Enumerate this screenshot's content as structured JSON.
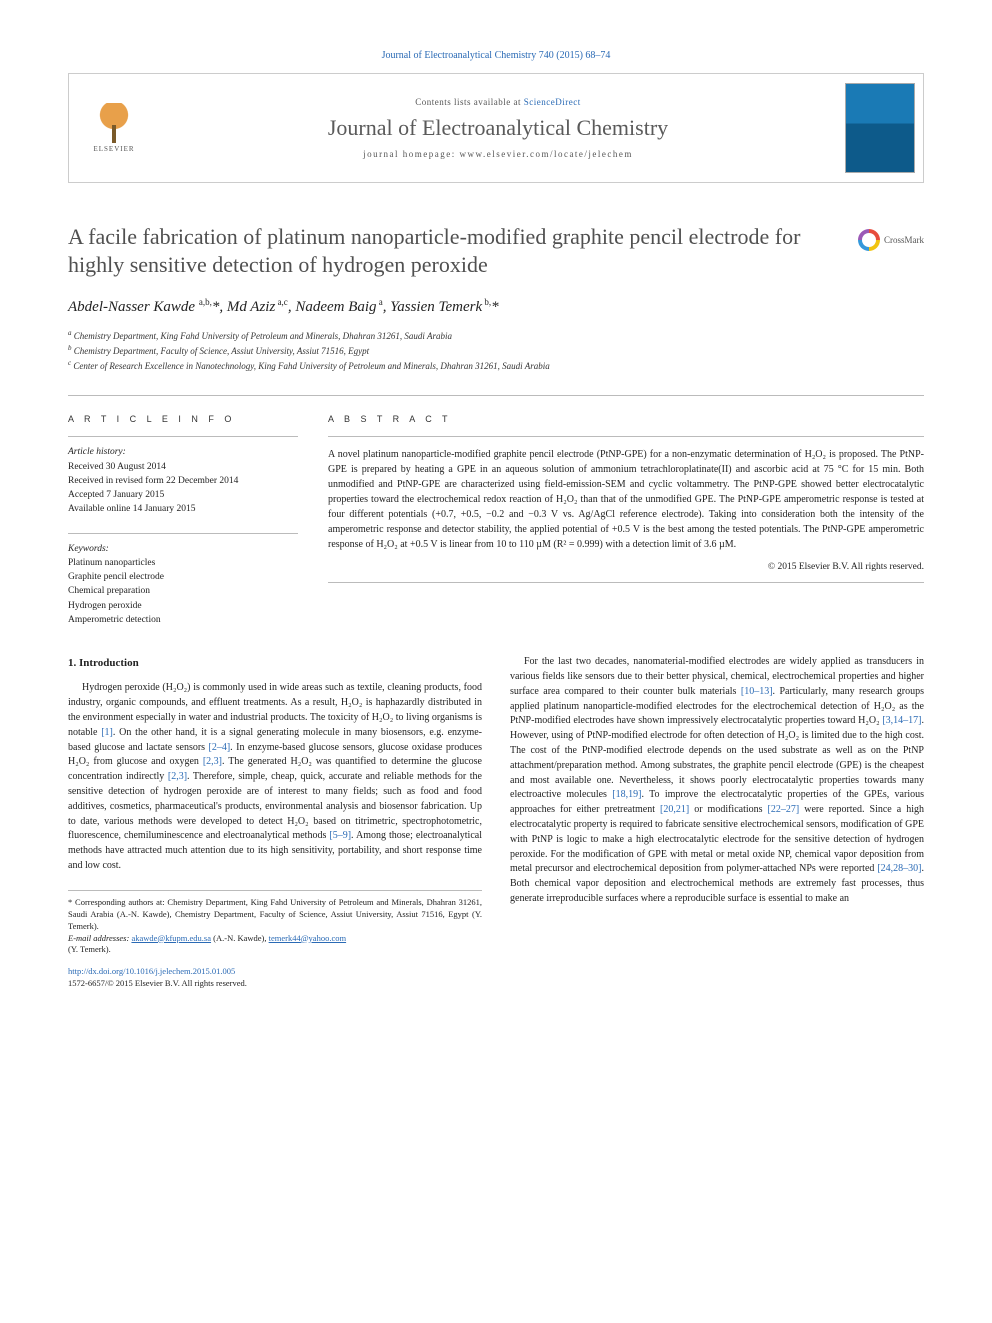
{
  "header": {
    "citation": "Journal of Electroanalytical Chemistry 740 (2015) 68–74",
    "contents_prefix": "Contents lists available at ",
    "contents_link": "ScienceDirect",
    "journal_title": "Journal of Electroanalytical Chemistry",
    "homepage_prefix": "journal homepage: ",
    "homepage_url": "www.elsevier.com/locate/jelechem",
    "publisher_name": "ELSEVIER",
    "crossmark_label": "CrossMark"
  },
  "article": {
    "title": "A facile fabrication of platinum nanoparticle-modified graphite pencil electrode for highly sensitive detection of hydrogen peroxide",
    "authors_html": "Abdel-Nasser Kawde <sup>a,b,</sup><span class='ast'>*</span>, Md Aziz<sup> a,c</sup>, Nadeem Baig<sup> a</sup>, Yassien Temerk<sup> b,</sup><span class='ast'>*</span>",
    "affiliations": {
      "a": "Chemistry Department, King Fahd University of Petroleum and Minerals, Dhahran 31261, Saudi Arabia",
      "b": "Chemistry Department, Faculty of Science, Assiut University, Assiut 71516, Egypt",
      "c": "Center of Research Excellence in Nanotechnology, King Fahd University of Petroleum and Minerals, Dhahran 31261, Saudi Arabia"
    }
  },
  "info": {
    "label": "A R T I C L E   I N F O",
    "history_label": "Article history:",
    "history": [
      "Received 30 August 2014",
      "Received in revised form 22 December 2014",
      "Accepted 7 January 2015",
      "Available online 14 January 2015"
    ],
    "keywords_label": "Keywords:",
    "keywords": [
      "Platinum nanoparticles",
      "Graphite pencil electrode",
      "Chemical preparation",
      "Hydrogen peroxide",
      "Amperometric detection"
    ]
  },
  "abstract": {
    "label": "A B S T R A C T",
    "text": "A novel platinum nanoparticle-modified graphite pencil electrode (PtNP-GPE) for a non-enzymatic determination of H₂O₂ is proposed. The PtNP-GPE is prepared by heating a GPE in an aqueous solution of ammonium tetrachloroplatinate(II) and ascorbic acid at 75 °C for 15 min. Both unmodified and PtNP-GPE are characterized using field-emission-SEM and cyclic voltammetry. The PtNP-GPE showed better electrocatalytic properties toward the electrochemical redox reaction of H₂O₂ than that of the unmodified GPE. The PtNP-GPE amperometric response is tested at four different potentials (+0.7, +0.5, −0.2 and −0.3 V vs. Ag/AgCl reference electrode). Taking into consideration both the intensity of the amperometric response and detector stability, the applied potential of +0.5 V is the best among the tested potentials. The PtNP-GPE amperometric response of H₂O₂ at +0.5 V is linear from 10 to 110 µM (R² = 0.999) with a detection limit of 3.6 µM.",
    "copyright": "© 2015 Elsevier B.V. All rights reserved."
  },
  "body": {
    "section_heading": "1. Introduction",
    "col1_para1_pre": "Hydrogen peroxide (H₂O₂) is commonly used in wide areas such as textile, cleaning products, food industry, organic compounds, and effluent treatments. As a result, H₂O₂ is haphazardly distributed in the environment especially in water and industrial products. The toxicity of H₂O₂ to living organisms is notable ",
    "ref1": "[1]",
    "col1_para1_mid1": ". On the other hand, it is a signal generating molecule in many biosensors, e.g. enzyme-based glucose and lactate sensors ",
    "ref2_4": "[2–4]",
    "col1_para1_mid2": ". In enzyme-based glucose sensors, glucose oxidase produces H₂O₂ from glucose and oxygen ",
    "ref2_3a": "[2,3]",
    "col1_para1_mid3": ". The generated H₂O₂ was quantified to determine the glucose concentration indirectly ",
    "ref2_3b": "[2,3]",
    "col1_para1_mid4": ". Therefore, simple, cheap, quick, accurate and reliable methods for the sensitive detection of hydrogen peroxide are of interest to many fields; such as food and food additives, cosmetics, pharmaceutical's products, environmental analysis and biosensor fabrication. Up to date, various methods were developed to detect H₂O₂ based on titrimetric, spectrophotometric, fluorescence, chemiluminescence and electroanalytical methods ",
    "ref5_9": "[5–9]",
    "col1_para1_end": ". Among those; electroanalytical methods have attracted much attention due to its high sensitivity, portability, and short response time and low cost.",
    "col2_para1_pre": "For the last two decades, nanomaterial-modified electrodes are widely applied as transducers in various fields like sensors due to their better physical, chemical, electrochemical properties and higher surface area compared to their counter bulk materials ",
    "ref10_13": "[10–13]",
    "col2_para1_mid1": ". Particularly, many research groups applied platinum nanoparticle-modified electrodes for the electrochemical detection of H₂O₂ as the PtNP-modified electrodes have shown impressively electrocatalytic properties toward H₂O₂ ",
    "ref3_14_17": "[3,14–17]",
    "col2_para1_mid2": ". However, using of PtNP-modified electrode for often detection of H₂O₂ is limited due to the high cost. The cost of the PtNP-modified electrode depends on the used substrate as well as on the PtNP attachment/preparation method. Among substrates, the graphite pencil electrode (GPE) is the cheapest and most available one. Nevertheless, it shows poorly electrocatalytic properties towards many electroactive molecules ",
    "ref18_19": "[18,19]",
    "col2_para1_mid3": ". To improve the electrocatalytic properties of the GPEs, various approaches for either pretreatment ",
    "ref20_21": "[20,21]",
    "col2_para1_mid4": " or modifications ",
    "ref22_27": "[22–27]",
    "col2_para1_mid5": " were reported. Since a high electrocatalytic property is required to fabricate sensitive electrochemical sensors, modification of GPE with PtNP is logic to make a high electrocatalytic electrode for the sensitive detection of hydrogen peroxide. For the modification of GPE with metal or metal oxide NP, chemical vapor deposition from metal precursor and electrochemical deposition from polymer-attached NPs were reported ",
    "ref24_28_30": "[24,28–30]",
    "col2_para1_end": ". Both chemical vapor deposition and electrochemical methods are extremely fast processes, thus generate irreproducible surfaces where a reproducible surface is essential to make an"
  },
  "footnotes": {
    "corresponding": "* Corresponding authors at: Chemistry Department, King Fahd University of Petroleum and Minerals, Dhahran 31261, Saudi Arabia (A.-N. Kawde), Chemistry Department, Faculty of Science, Assiut University, Assiut 71516, Egypt (Y. Temerk).",
    "email_label": "E-mail addresses: ",
    "email1": "akawde@kfupm.edu.sa",
    "email1_owner": " (A.-N. Kawde), ",
    "email2": "temerk44@yahoo.com",
    "email2_owner": " (Y. Temerk)."
  },
  "doi": {
    "url": "http://dx.doi.org/10.1016/j.jelechem.2015.01.005",
    "issn_copyright": "1572-6657/© 2015 Elsevier B.V. All rights reserved."
  },
  "colors": {
    "link": "#2a6ab5",
    "text": "#222222",
    "muted": "#555555",
    "rule": "#bbbbbb",
    "title_gray": "#505050"
  }
}
